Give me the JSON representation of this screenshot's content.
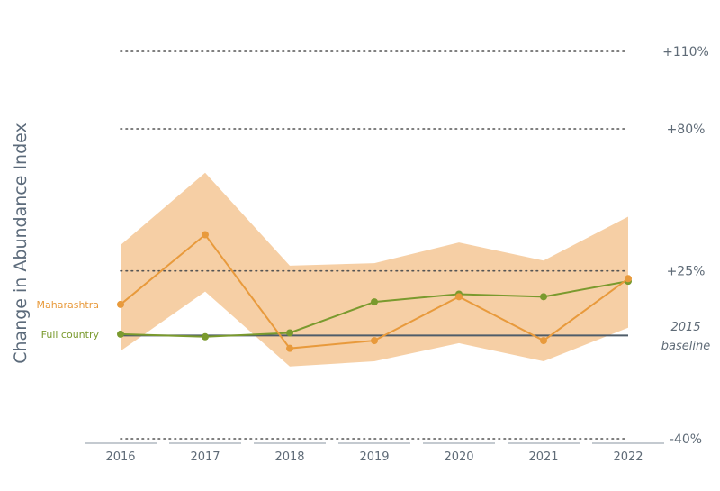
{
  "chart_data": {
    "type": "line",
    "title": "",
    "ylabel": "Change in Abundance Index",
    "xlabel": "",
    "x": [
      "2016",
      "2017",
      "2018",
      "2019",
      "2020",
      "2021",
      "2022"
    ],
    "ylim": [
      -40,
      110
    ],
    "reference_lines": [
      {
        "value": 110,
        "label": "+110%"
      },
      {
        "value": 80,
        "label": "+80%"
      },
      {
        "value": 25,
        "label": "+25%"
      },
      {
        "value": -40,
        "label": "-40%"
      }
    ],
    "baseline": {
      "value": 0,
      "label_line1": "2015",
      "label_line2": "baseline"
    },
    "series": [
      {
        "name": "Maharashtra",
        "color": "#e89a3c",
        "values": [
          12,
          39,
          -5,
          -2,
          15,
          -2,
          22
        ],
        "band_upper": [
          35,
          63,
          27,
          28,
          36,
          29,
          46
        ],
        "band_lower": [
          -6,
          17,
          -12,
          -10,
          -3,
          -10,
          3
        ],
        "band_color": "#f6cfa5"
      },
      {
        "name": "Full country",
        "color": "#7a9a2e",
        "values": [
          0.5,
          -0.5,
          1,
          13,
          16,
          15,
          21
        ]
      }
    ]
  }
}
